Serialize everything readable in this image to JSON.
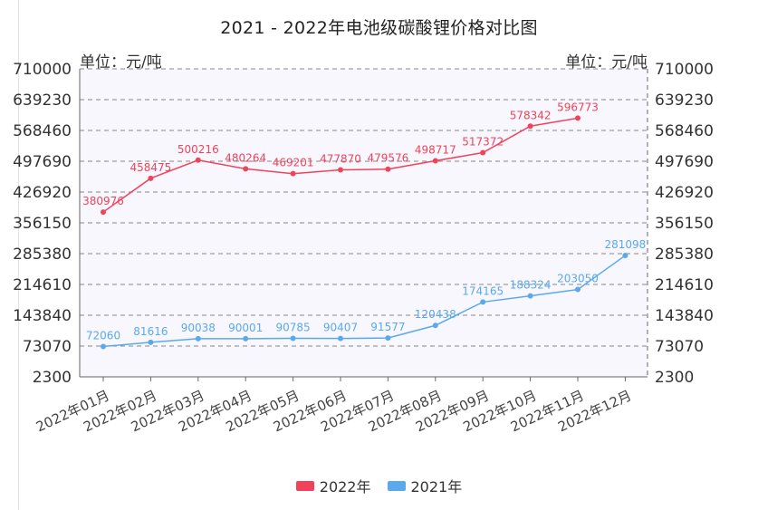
{
  "chart_data": {
    "type": "line",
    "title": "2021 - 2022年电池级碳酸锂价格对比图",
    "unit_left": "单位：元/吨",
    "unit_right": "单位：元/吨",
    "categories": [
      "2022年01月",
      "2022年02月",
      "2022年03月",
      "2022年04月",
      "2022年05月",
      "2022年06月",
      "2022年07月",
      "2022年08月",
      "2022年09月",
      "2022年10月",
      "2022年11月",
      "2022年12月"
    ],
    "yticks": [
      2300,
      73070,
      143840,
      214610,
      285380,
      356150,
      426920,
      497690,
      568460,
      639230,
      710000
    ],
    "ylim": [
      2300,
      710000
    ],
    "series": [
      {
        "name": "2022年",
        "color": "#f0435a",
        "values": [
          380976,
          458475,
          500216,
          480264,
          469201,
          477870,
          479576,
          498717,
          517372,
          578342,
          596773,
          null
        ]
      },
      {
        "name": "2021年",
        "color": "#5aa9ee",
        "values": [
          72060,
          81616,
          90038,
          90001,
          90785,
          90407,
          91577,
          120438,
          174165,
          188324,
          203050,
          281098
        ]
      }
    ]
  }
}
